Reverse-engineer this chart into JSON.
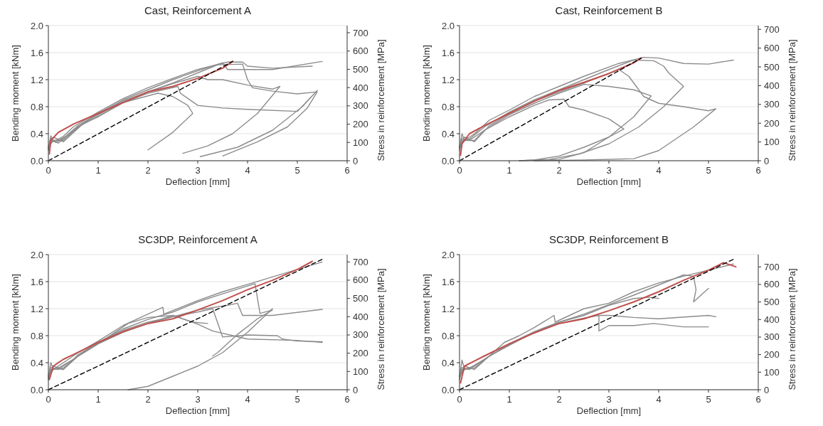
{
  "chart_data": [
    {
      "type": "line",
      "title": "Cast, Reinforcement A",
      "xlabel": "Deflection [mm]",
      "ylabel": "Bending moment [kNm]",
      "y2label": "Stress in reinforcement [MPa]",
      "xlim": [
        0,
        6
      ],
      "xticks": [
        0,
        1,
        2,
        3,
        4,
        5,
        6
      ],
      "ylim": [
        0,
        2
      ],
      "yticks": [
        {
          "value": 0,
          "label": "0.0"
        },
        {
          "value": 0.4,
          "label": "0.4"
        },
        {
          "value": 0.8,
          "label": "0.8"
        },
        {
          "value": 1.2,
          "label": "1.2"
        },
        {
          "value": 1.6,
          "label": "1.6"
        },
        {
          "value": 2,
          "label": "2.0"
        }
      ],
      "y2lim": [
        0,
        739
      ],
      "y2ticks": [
        0,
        100,
        200,
        300,
        400,
        500,
        600,
        700
      ],
      "grid": "y",
      "series": [
        {
          "color": "#8c8c8c",
          "x": [
            0,
            0.05,
            0.1,
            0.3,
            0.5,
            1,
            1.5,
            2,
            2.5,
            3,
            3.6,
            3.9,
            4.0,
            4.5,
            5.3
          ],
          "values": [
            0.2,
            0.37,
            0.28,
            0.36,
            0.5,
            0.72,
            0.92,
            1.08,
            1.22,
            1.35,
            1.46,
            1.46,
            1.4,
            1.37,
            1.4
          ]
        },
        {
          "color": "#8c8c8c",
          "x": [
            0,
            0.05,
            0.15,
            0.3,
            0.6,
            1,
            1.5,
            2,
            2.5,
            3,
            3.5,
            3.6,
            4,
            4.5,
            5.5
          ],
          "values": [
            0.18,
            0.33,
            0.27,
            0.33,
            0.52,
            0.7,
            0.9,
            1.05,
            1.2,
            1.33,
            1.45,
            1.35,
            1.35,
            1.35,
            1.47
          ]
        },
        {
          "color": "#8c8c8c",
          "x": [
            0,
            0.05,
            0.2,
            0.4,
            0.8,
            1,
            1.5,
            2,
            2.5,
            3,
            3.4,
            3.9,
            4.0,
            4.1,
            4.5,
            5.0,
            5.4,
            5.2,
            4.8,
            4.2,
            3.5
          ],
          "values": [
            0.15,
            0.3,
            0.3,
            0.38,
            0.6,
            0.68,
            0.88,
            1.02,
            1.15,
            1.3,
            1.42,
            1.43,
            1.2,
            1.08,
            1.03,
            0.99,
            1.02,
            0.78,
            0.5,
            0.28,
            0.07
          ]
        },
        {
          "color": "#8c8c8c",
          "x": [
            0,
            0.05,
            0.2,
            0.5,
            1,
            1.5,
            2,
            2.5,
            3,
            3.2,
            3.5,
            4,
            4.5,
            4.65,
            4.2,
            3.7,
            3.2,
            2.7
          ],
          "values": [
            0.2,
            0.32,
            0.26,
            0.45,
            0.7,
            0.88,
            1.02,
            1.14,
            1.25,
            1.2,
            1.2,
            1.12,
            1.06,
            1.1,
            0.7,
            0.4,
            0.22,
            0.11
          ]
        },
        {
          "color": "#8c8c8c",
          "x": [
            0,
            0.1,
            0.3,
            0.6,
            1,
            1.5,
            2,
            2.6,
            2.65,
            3,
            3.5,
            4,
            5,
            5.4,
            5.1,
            4.5,
            3.8,
            3.05
          ],
          "values": [
            0.2,
            0.3,
            0.3,
            0.5,
            0.66,
            0.86,
            1.0,
            1.1,
            1.0,
            0.82,
            0.78,
            0.76,
            0.73,
            1.04,
            0.8,
            0.45,
            0.2,
            0.06
          ]
        },
        {
          "color": "#8c8c8c",
          "x": [
            0,
            0.1,
            0.3,
            0.7,
            1,
            1.5,
            2.2,
            2.5,
            2.8,
            2.9,
            2.5,
            2.0
          ],
          "values": [
            0.18,
            0.35,
            0.28,
            0.55,
            0.65,
            0.86,
            1.0,
            0.95,
            0.82,
            0.7,
            0.42,
            0.16
          ]
        },
        {
          "color": "#c0504d",
          "x": [
            0.02,
            0.05,
            0.2,
            0.5,
            1,
            1.5,
            2,
            2.5,
            3,
            3.5,
            3.7
          ],
          "values": [
            0.1,
            0.3,
            0.42,
            0.54,
            0.7,
            0.86,
            1.02,
            1.1,
            1.22,
            1.37,
            1.47
          ]
        },
        {
          "color": "#000000",
          "line_style": "dashed",
          "x": [
            0,
            3.7
          ],
          "values": [
            0,
            1.47
          ]
        }
      ]
    },
    {
      "type": "line",
      "title": "Cast, Reinforcement B",
      "xlabel": "Deflection [mm]",
      "ylabel": "Bending moment [kNm]",
      "y2label": "Stress in reinforcement [MPa]",
      "xlim": [
        0,
        6
      ],
      "xticks": [
        0,
        1,
        2,
        3,
        4,
        5,
        6
      ],
      "ylim": [
        0,
        2
      ],
      "yticks": [
        {
          "value": 0,
          "label": "0.0"
        },
        {
          "value": 0.4,
          "label": "0.4"
        },
        {
          "value": 0.8,
          "label": "0.8"
        },
        {
          "value": 1.2,
          "label": "1.2"
        },
        {
          "value": 1.6,
          "label": "1.6"
        },
        {
          "value": 2,
          "label": "2.0"
        }
      ],
      "y2lim": [
        0,
        720
      ],
      "y2ticks": [
        0,
        100,
        200,
        300,
        400,
        500,
        600,
        700
      ],
      "grid": "y",
      "series": [
        {
          "color": "#8c8c8c",
          "x": [
            0,
            0.05,
            0.1,
            0.3,
            0.6,
            1,
            1.5,
            2,
            2.5,
            3.2,
            3.7,
            4.0,
            4.5,
            5,
            5.5
          ],
          "values": [
            0.2,
            0.4,
            0.3,
            0.4,
            0.6,
            0.75,
            0.95,
            1.1,
            1.25,
            1.44,
            1.53,
            1.52,
            1.44,
            1.43,
            1.49
          ]
        },
        {
          "color": "#8c8c8c",
          "x": [
            0,
            0.05,
            0.2,
            0.5,
            1,
            1.5,
            2,
            2.5,
            3,
            3.5,
            3.9,
            4.1,
            4.2,
            4.5,
            4.1,
            3.6,
            3,
            2.4,
            1.8,
            1.2
          ],
          "values": [
            0.15,
            0.3,
            0.32,
            0.5,
            0.72,
            0.9,
            1.05,
            1.2,
            1.35,
            1.49,
            1.48,
            1.4,
            1.3,
            1.1,
            0.8,
            0.5,
            0.25,
            0.1,
            0.02,
            0
          ]
        },
        {
          "color": "#8c8c8c",
          "x": [
            0,
            0.1,
            0.3,
            0.6,
            1,
            1.5,
            2,
            2.5,
            3.2,
            3.4,
            3.7,
            4,
            4.5,
            5,
            5.15,
            4.7,
            4,
            3.5,
            2.5,
            1.5
          ],
          "values": [
            0.18,
            0.35,
            0.28,
            0.52,
            0.7,
            0.88,
            1.02,
            1.15,
            1.35,
            1.25,
            0.95,
            0.85,
            0.8,
            0.74,
            0.77,
            0.5,
            0.15,
            0.03,
            0.01,
            0
          ]
        },
        {
          "color": "#8c8c8c",
          "x": [
            0,
            0.05,
            0.2,
            0.5,
            1,
            1.5,
            2,
            2.5,
            3,
            3.5,
            3.85,
            3.5,
            3.0,
            2.5,
            2.0,
            1.5
          ],
          "values": [
            0.2,
            0.33,
            0.3,
            0.45,
            0.68,
            0.85,
            1.0,
            1.13,
            1.1,
            1.05,
            0.96,
            0.65,
            0.35,
            0.12,
            0.02,
            0
          ]
        },
        {
          "color": "#8c8c8c",
          "x": [
            0,
            0.1,
            0.3,
            0.5,
            1,
            1.5,
            1.8,
            2.1,
            2.2,
            2.5,
            3,
            3.3,
            3.0,
            2.5,
            2,
            1.5,
            1.2
          ],
          "values": [
            0.2,
            0.3,
            0.3,
            0.45,
            0.65,
            0.82,
            0.9,
            0.91,
            0.8,
            0.75,
            0.62,
            0.47,
            0.35,
            0.2,
            0.07,
            0.01,
            0
          ]
        },
        {
          "color": "#c0504d",
          "x": [
            0.02,
            0.05,
            0.2,
            0.5,
            1,
            1.5,
            2,
            2.5,
            3,
            3.5,
            3.65
          ],
          "values": [
            0.08,
            0.25,
            0.4,
            0.52,
            0.7,
            0.88,
            1.04,
            1.16,
            1.29,
            1.45,
            1.52
          ]
        },
        {
          "color": "#000000",
          "line_style": "dashed",
          "x": [
            0,
            3.65
          ],
          "values": [
            0,
            1.52
          ]
        }
      ]
    },
    {
      "type": "line",
      "title": "SC3DP, Reinforcement A",
      "xlabel": "Deflection [mm]",
      "ylabel": "Bending moment [kNm]",
      "y2label": "Stress in reinforcement [MPa]",
      "xlim": [
        0,
        6
      ],
      "xticks": [
        0,
        1,
        2,
        3,
        4,
        5,
        6
      ],
      "ylim": [
        0,
        2
      ],
      "yticks": [
        {
          "value": 0,
          "label": "0.0"
        },
        {
          "value": 0.4,
          "label": "0.4"
        },
        {
          "value": 0.8,
          "label": "0.8"
        },
        {
          "value": 1.2,
          "label": "1.2"
        },
        {
          "value": 1.6,
          "label": "1.6"
        },
        {
          "value": 2,
          "label": "2.0"
        }
      ],
      "y2lim": [
        0,
        740
      ],
      "y2ticks": [
        0,
        100,
        200,
        300,
        400,
        500,
        600,
        700
      ],
      "grid": "y",
      "series": [
        {
          "color": "#8c8c8c",
          "x": [
            0,
            0.05,
            0.1,
            0.3,
            0.6,
            1,
            1.5,
            2,
            2.3,
            2.32,
            3,
            3.5,
            4.1,
            4.5,
            5,
            5.5
          ],
          "values": [
            0.2,
            0.4,
            0.3,
            0.4,
            0.55,
            0.72,
            0.95,
            1.12,
            1.22,
            1.12,
            1.32,
            1.45,
            1.58,
            1.67,
            1.78,
            1.89
          ]
        },
        {
          "color": "#8c8c8c",
          "x": [
            0,
            0.05,
            0.2,
            0.5,
            1,
            1.5,
            2,
            2.5,
            3,
            3.5,
            4.15,
            4.25,
            4.5,
            4.2,
            3.8,
            3.4,
            3.3
          ],
          "values": [
            0.15,
            0.3,
            0.32,
            0.45,
            0.7,
            0.9,
            1.04,
            1.15,
            1.3,
            1.42,
            1.57,
            1.13,
            1.18,
            1.05,
            0.82,
            0.55,
            0.5
          ]
        },
        {
          "color": "#8c8c8c",
          "x": [
            0,
            0.1,
            0.3,
            0.6,
            1,
            1.5,
            2,
            2.5,
            3,
            3.6,
            3.8,
            3.9,
            4.5,
            5.5
          ],
          "values": [
            0.18,
            0.35,
            0.3,
            0.52,
            0.7,
            0.88,
            1.0,
            1.08,
            1.18,
            1.25,
            1.28,
            1.1,
            1.1,
            1.19
          ]
        },
        {
          "color": "#8c8c8c",
          "x": [
            0,
            0.05,
            0.2,
            0.5,
            1,
            1.5,
            2,
            2.5,
            3,
            3.3,
            3.5,
            4,
            4.6,
            4.7,
            5,
            5.5
          ],
          "values": [
            0.2,
            0.33,
            0.3,
            0.45,
            0.68,
            0.86,
            0.98,
            1.08,
            1.15,
            1.2,
            0.78,
            0.81,
            0.8,
            0.75,
            0.72,
            0.71
          ]
        },
        {
          "color": "#8c8c8c",
          "x": [
            0,
            0.1,
            0.3,
            0.6,
            1,
            1.5,
            2,
            2.5,
            3,
            3.3,
            4,
            5,
            5.5
          ],
          "values": [
            0.2,
            0.3,
            0.32,
            0.5,
            0.68,
            0.85,
            0.98,
            1.1,
            0.97,
            0.87,
            0.75,
            0.73,
            0.7
          ]
        },
        {
          "color": "#8c8c8c",
          "x": [
            1.6,
            2,
            2.5,
            3,
            3.5,
            4,
            4.5
          ],
          "values": [
            0,
            0.05,
            0.2,
            0.35,
            0.55,
            0.85,
            1.2
          ]
        },
        {
          "color": "#8c8c8c",
          "x": [
            0,
            0.1,
            0.3,
            0.6,
            1,
            1.6,
            2,
            2.5,
            2.9,
            3.2
          ],
          "values": [
            0.18,
            0.32,
            0.3,
            0.5,
            0.68,
            0.98,
            1.07,
            1.1,
            1.0,
            0.98
          ]
        },
        {
          "color": "#c0504d",
          "x": [
            0.02,
            0.1,
            0.3,
            0.5,
            1,
            1.5,
            2,
            2.5,
            3,
            3.5,
            4,
            4.5,
            5,
            5.3
          ],
          "values": [
            0.15,
            0.35,
            0.45,
            0.52,
            0.7,
            0.86,
            0.98,
            1.05,
            1.18,
            1.32,
            1.48,
            1.62,
            1.78,
            1.9
          ]
        },
        {
          "color": "#000000",
          "line_style": "dashed",
          "x": [
            0,
            5.5
          ],
          "values": [
            0,
            1.93
          ]
        }
      ]
    },
    {
      "type": "line",
      "title": "SC3DP, Reinforcement B",
      "xlabel": "Deflection [mm]",
      "ylabel": "Bending moment [kNm]",
      "y2label": "Stress in reinforcement [MPa]",
      "xlim": [
        0,
        6
      ],
      "xticks": [
        0,
        1,
        2,
        3,
        4,
        5,
        6
      ],
      "ylim": [
        0,
        2
      ],
      "yticks": [
        {
          "value": 0,
          "label": "0.0"
        },
        {
          "value": 0.4,
          "label": "0.4"
        },
        {
          "value": 0.8,
          "label": "0.8"
        },
        {
          "value": 1.2,
          "label": "1.2"
        },
        {
          "value": 1.6,
          "label": "1.6"
        },
        {
          "value": 2,
          "label": "2.0"
        }
      ],
      "y2lim": [
        0,
        770
      ],
      "y2ticks": [
        0,
        100,
        200,
        300,
        400,
        500,
        600,
        700
      ],
      "grid": "y",
      "series": [
        {
          "color": "#8c8c8c",
          "x": [
            0,
            0.05,
            0.1,
            0.3,
            0.6,
            0.9,
            1.2,
            1.5,
            1.9,
            1.92,
            2.5,
            3,
            3.5,
            4,
            4.5,
            5,
            5.5
          ],
          "values": [
            0.2,
            0.44,
            0.3,
            0.35,
            0.5,
            0.7,
            0.8,
            0.92,
            1.1,
            1.0,
            1.2,
            1.28,
            1.45,
            1.58,
            1.68,
            1.77,
            1.86
          ]
        },
        {
          "color": "#8c8c8c",
          "x": [
            0,
            0.05,
            0.2,
            0.5,
            1,
            1.5,
            2,
            2.5,
            3,
            3.5,
            4,
            4.5,
            4.7,
            4.75,
            4.7,
            4.85,
            5
          ],
          "values": [
            0.15,
            0.3,
            0.32,
            0.45,
            0.68,
            0.86,
            1.0,
            1.12,
            1.26,
            1.4,
            1.55,
            1.7,
            1.68,
            1.48,
            1.3,
            1.4,
            1.5
          ]
        },
        {
          "color": "#8c8c8c",
          "x": [
            0,
            0.1,
            0.3,
            0.6,
            1,
            1.5,
            2,
            2.5,
            2.8,
            2.8,
            3,
            3.5,
            3.9,
            4.5,
            5
          ],
          "values": [
            0.18,
            0.35,
            0.3,
            0.5,
            0.66,
            0.85,
            0.98,
            1.06,
            1.1,
            0.87,
            0.95,
            0.95,
            0.98,
            0.93,
            0.93
          ]
        },
        {
          "color": "#8c8c8c",
          "x": [
            0,
            0.05,
            0.2,
            0.5,
            1,
            1.5,
            2,
            2.5,
            2.7,
            3,
            3.5,
            4,
            5,
            5.15
          ],
          "values": [
            0.2,
            0.33,
            0.3,
            0.45,
            0.67,
            0.84,
            0.98,
            1.05,
            1.1,
            1.1,
            1.07,
            1.05,
            1.1,
            1.08
          ]
        },
        {
          "color": "#8c8c8c",
          "x": [
            0,
            0.1,
            0.3,
            0.6,
            1,
            1.5,
            2,
            2.5,
            3,
            3.5,
            3.8,
            4
          ],
          "values": [
            0.2,
            0.3,
            0.32,
            0.5,
            0.66,
            0.85,
            1.0,
            1.1,
            1.25,
            1.35,
            1.37,
            1.35
          ]
        },
        {
          "color": "#c0504d",
          "x": [
            0.02,
            0.1,
            0.5,
            1,
            1.5,
            2,
            2.5,
            3,
            3.5,
            4,
            4.5,
            5,
            5.3,
            5.55
          ],
          "values": [
            0.1,
            0.35,
            0.5,
            0.68,
            0.84,
            0.98,
            1.05,
            1.17,
            1.3,
            1.45,
            1.62,
            1.77,
            1.88,
            1.82
          ]
        },
        {
          "color": "#000000",
          "line_style": "dashed",
          "x": [
            0,
            5.5
          ],
          "values": [
            0,
            1.93
          ]
        }
      ]
    }
  ]
}
